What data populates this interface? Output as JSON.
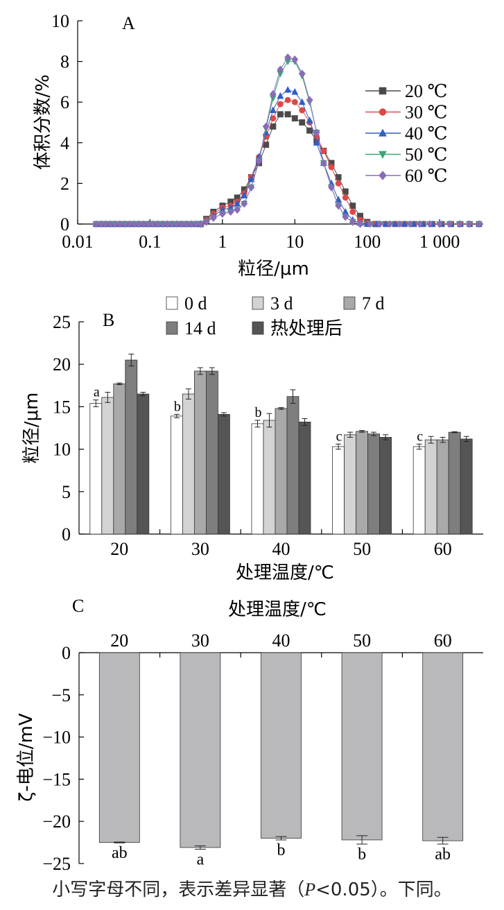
{
  "chart_data": [
    {
      "panel": "A",
      "type": "scatter",
      "xlabel": "粒径/μm",
      "ylabel": "体积分数/%",
      "xscale": "log",
      "xlim": [
        0.01,
        4000
      ],
      "ylim": [
        0,
        10
      ],
      "xticks": [
        0.01,
        0.1,
        1,
        10,
        100,
        1000
      ],
      "xtick_labels": [
        "0.01",
        "0.1",
        "1",
        "10",
        "100",
        "1 000"
      ],
      "yticks": [
        0,
        2,
        4,
        6,
        8,
        10
      ],
      "legend_position": "right",
      "series": [
        {
          "name": "20 ℃",
          "color": "#4a4a4a",
          "marker": "square",
          "x": [
            0.5,
            0.6,
            0.75,
            1,
            1.3,
            1.6,
            2,
            2.5,
            3.2,
            4,
            5,
            6.3,
            8,
            10,
            12.6,
            16,
            20,
            25,
            32,
            40,
            50,
            63,
            80,
            100,
            130
          ],
          "y": [
            0,
            0.25,
            0.6,
            0.9,
            1.1,
            1.3,
            1.7,
            2.3,
            3.0,
            3.9,
            4.8,
            5.4,
            5.4,
            5.2,
            5.0,
            4.6,
            4.1,
            3.6,
            3.0,
            2.3,
            1.6,
            0.9,
            0.4,
            0.1,
            0
          ],
          "x_tail": [
            100,
            3500
          ]
        },
        {
          "name": "30 ℃",
          "color": "#e04848",
          "marker": "circle",
          "x": [
            0.5,
            0.6,
            0.75,
            1,
            1.3,
            1.6,
            2,
            2.5,
            3.2,
            4,
            5,
            6.3,
            8,
            10,
            12.6,
            16,
            20,
            25,
            32,
            40,
            50,
            63,
            80,
            100,
            130
          ],
          "y": [
            0,
            0.2,
            0.5,
            0.8,
            0.9,
            1.1,
            1.5,
            2.3,
            3.3,
            4.3,
            5.2,
            5.9,
            6.1,
            6.0,
            5.6,
            5.0,
            4.3,
            3.6,
            2.8,
            2.0,
            1.3,
            0.6,
            0.2,
            0.05,
            0
          ],
          "x_tail": [
            100,
            3500
          ]
        },
        {
          "name": "40 ℃",
          "color": "#2f5fc4",
          "marker": "triangle",
          "x": [
            0.5,
            0.6,
            0.75,
            1,
            1.3,
            1.6,
            2,
            2.5,
            3.2,
            4,
            5,
            6.3,
            8,
            10,
            12.6,
            16,
            20,
            25,
            32,
            40,
            50,
            63,
            80,
            100
          ],
          "y": [
            0,
            0.15,
            0.4,
            0.7,
            0.8,
            1.0,
            1.4,
            2.2,
            3.3,
            4.5,
            5.6,
            6.3,
            6.6,
            6.5,
            6.0,
            5.1,
            4.0,
            3.0,
            2.0,
            1.2,
            0.6,
            0.2,
            0.05,
            0
          ],
          "x_tail": [
            100,
            3500
          ]
        },
        {
          "name": "50 ℃",
          "color": "#3aa872",
          "marker": "triangle-down",
          "x": [
            0.5,
            0.6,
            0.75,
            1,
            1.3,
            1.6,
            2,
            2.5,
            3.2,
            4,
            5,
            6.3,
            8,
            10,
            12.6,
            16,
            20,
            25,
            32,
            40,
            50,
            63,
            80
          ],
          "y": [
            0,
            0.1,
            0.3,
            0.5,
            0.6,
            0.7,
            1.0,
            1.8,
            3.1,
            4.7,
            6.2,
            7.4,
            8.0,
            8.0,
            7.3,
            6.0,
            4.5,
            3.0,
            1.8,
            0.9,
            0.35,
            0.1,
            0
          ],
          "x_tail": [
            80,
            3500
          ]
        },
        {
          "name": "60 ℃",
          "color": "#8a6bb8",
          "marker": "diamond",
          "x": [
            0.5,
            0.6,
            0.75,
            1,
            1.3,
            1.6,
            2,
            2.5,
            3.2,
            4,
            5,
            6.3,
            8,
            10,
            12.6,
            16,
            20,
            25,
            32,
            40,
            50,
            63,
            80
          ],
          "y": [
            0,
            0.1,
            0.3,
            0.5,
            0.6,
            0.7,
            1.0,
            1.8,
            3.1,
            4.8,
            6.4,
            7.6,
            8.2,
            8.1,
            7.4,
            6.1,
            4.5,
            3.0,
            1.8,
            0.9,
            0.35,
            0.1,
            0
          ],
          "x_tail": [
            80,
            3500
          ]
        }
      ],
      "baseline_from": 0.018
    },
    {
      "panel": "B",
      "type": "bar",
      "xlabel": "处理温度/℃",
      "ylabel": "粒径/μm",
      "ylim": [
        0,
        25
      ],
      "yticks": [
        0,
        5,
        10,
        15,
        20,
        25
      ],
      "categories": [
        "20",
        "30",
        "40",
        "50",
        "60"
      ],
      "legend_position": "top",
      "series": [
        {
          "name": "0 d",
          "color": "#ffffff",
          "values": [
            15.4,
            13.9,
            13.0,
            10.3,
            10.3
          ],
          "errors": [
            0.4,
            0.2,
            0.4,
            0.3,
            0.3
          ]
        },
        {
          "name": "3 d",
          "color": "#d3d3d3",
          "values": [
            16.1,
            16.5,
            13.4,
            11.7,
            11.1
          ],
          "errors": [
            0.6,
            0.6,
            0.8,
            0.3,
            0.4
          ]
        },
        {
          "name": "7 d",
          "color": "#a9a9a9",
          "values": [
            17.7,
            19.2,
            14.8,
            12.1,
            11.1
          ],
          "errors": [
            0.1,
            0.4,
            0.1,
            0.1,
            0.3
          ]
        },
        {
          "name": "14 d",
          "color": "#7e7e7e",
          "values": [
            20.5,
            19.2,
            16.2,
            11.8,
            12.0
          ],
          "errors": [
            0.7,
            0.4,
            0.8,
            0.2,
            0.05
          ]
        },
        {
          "name": "热处理后",
          "color": "#555555",
          "values": [
            16.5,
            14.1,
            13.2,
            11.4,
            11.2
          ],
          "errors": [
            0.2,
            0.2,
            0.4,
            0.3,
            0.3
          ]
        }
      ],
      "significance_labels": [
        "a",
        "b",
        "b",
        "c",
        "c"
      ]
    },
    {
      "panel": "C",
      "type": "bar",
      "xlabel": "处理温度/℃",
      "ylabel": "ζ-电位/mV",
      "ylim": [
        -25,
        0
      ],
      "yticks": [
        0,
        -5,
        -10,
        -15,
        -20,
        -25
      ],
      "ytick_labels": [
        "0",
        "−5",
        "−10",
        "−15",
        "−20",
        "−25"
      ],
      "categories": [
        "20",
        "30",
        "40",
        "50",
        "60"
      ],
      "series": [
        {
          "color": "#b9b9bb",
          "values": [
            -22.5,
            -23.1,
            -22.0,
            -22.2,
            -22.3
          ],
          "errors": [
            0.05,
            0.2,
            0.2,
            0.5,
            0.4
          ]
        }
      ],
      "significance_labels": [
        "ab",
        "a",
        "b",
        "b",
        "ab"
      ]
    }
  ],
  "caption": {
    "pre": "小写字母不同，表示差异显著（",
    "italic": "P",
    "post": "<0.05）。下同。"
  }
}
